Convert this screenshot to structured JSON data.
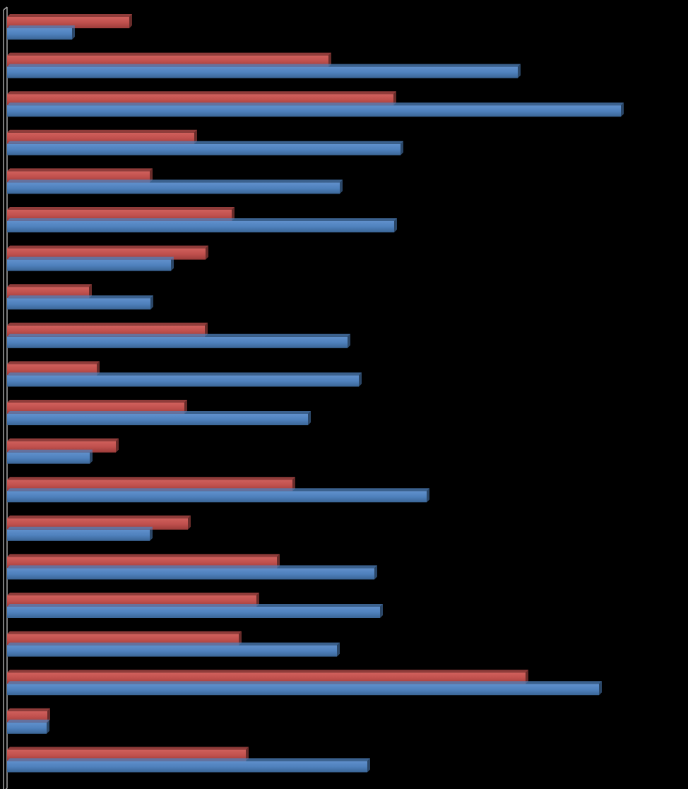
{
  "chart_data": {
    "type": "bar",
    "orientation": "horizontal",
    "style": "3d-clustered",
    "categories": [
      "",
      "",
      "",
      "",
      "",
      "",
      "",
      "",
      "",
      "",
      "",
      "",
      "",
      "",
      "",
      "",
      "",
      "",
      "",
      ""
    ],
    "series": [
      {
        "color": "#c0504d",
        "values": [
          173,
          455,
          547,
          265,
          202,
          318,
          281,
          116,
          280,
          127,
          251,
          154,
          404,
          256,
          382,
          353,
          328,
          734,
          57,
          338
        ]
      },
      {
        "color": "#4f81bd",
        "values": [
          92,
          723,
          869,
          557,
          471,
          548,
          232,
          203,
          482,
          498,
          426,
          117,
          594,
          202,
          520,
          528,
          467,
          838,
          56,
          510
        ]
      }
    ],
    "xlim": [
      0,
      960
    ],
    "grid": false,
    "legend": "none"
  }
}
